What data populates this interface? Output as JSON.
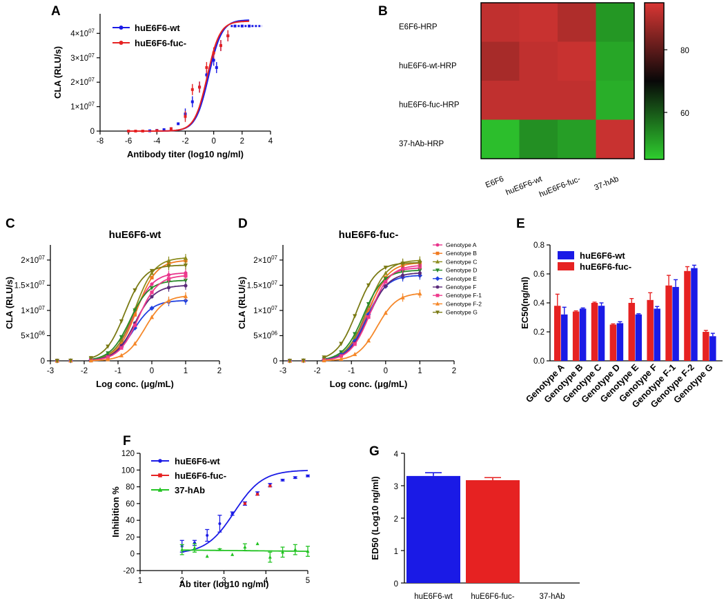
{
  "colors": {
    "wt": "#1a1ae6",
    "fuc": "#e62222",
    "hab": "#22c322",
    "black": "#000000",
    "genotype": [
      "#e8338c",
      "#f07a20",
      "#8c8c1e",
      "#2a8a2a",
      "#2040e0",
      "#5a2a7a",
      "#ee3a8c",
      "#f5882a",
      "#7a7a14"
    ]
  },
  "charts": {
    "A": {
      "label": "A",
      "type": "line",
      "xlabel": "Antibody titer  (log10 ng/ml)",
      "ylabel": "CLA (RLU/s)",
      "xlim": [
        -8,
        4
      ],
      "ylim": [
        0,
        48000000.0
      ],
      "xticks": [
        -8,
        -6,
        -4,
        -2,
        0,
        2,
        4
      ],
      "xtick_labels": [
        "-8",
        "-6",
        "-4",
        "-2",
        "0",
        "2",
        "4"
      ],
      "yticks": [
        0,
        10000000.0,
        20000000.0,
        30000000.0,
        40000000.0
      ],
      "ytick_labels": [
        {
          "m": "0",
          "e": ""
        },
        {
          "m": "1×10",
          "e": "07"
        },
        {
          "m": "2×10",
          "e": "07"
        },
        {
          "m": "3×10",
          "e": "07"
        },
        {
          "m": "4×10",
          "e": "07"
        }
      ],
      "legend": [
        "huE6F6-wt",
        "huE6F6-fuc-"
      ],
      "series": [
        {
          "name": "huE6F6-wt",
          "color": "#1a1ae6",
          "curve": {
            "bottom": 0,
            "top": 45500000.0,
            "ec50": -0.35,
            "hill": 0.95
          },
          "points": [
            [
              -6,
              0
            ],
            [
              -5.5,
              0
            ],
            [
              -5,
              0
            ],
            [
              -4.5,
              100000.0
            ],
            [
              -4,
              300000.0
            ],
            [
              -3.5,
              600000.0
            ],
            [
              -3,
              1000000.0
            ],
            [
              -2.5,
              3000000.0
            ],
            [
              -2,
              7000000.0
            ],
            [
              -1.5,
              12000000.0
            ],
            [
              -1,
              18000000.0
            ],
            [
              -0.5,
              23000000.0
            ],
            [
              0,
              29000000.0
            ],
            [
              0.2,
              26000000.0
            ],
            [
              0.5,
              35000000.0
            ],
            [
              1,
              39000000.0
            ],
            [
              1.5,
              43000000.0
            ],
            [
              2,
              43000000.0
            ],
            [
              2.5,
              43000000.0
            ]
          ]
        },
        {
          "name": "huE6F6-fuc-",
          "color": "#e62222",
          "curve": {
            "bottom": 0,
            "top": 45000000.0,
            "ec50": -0.45,
            "hill": 0.98
          },
          "points": [
            [
              -6,
              0
            ],
            [
              -5.5,
              0
            ],
            [
              -5,
              0
            ],
            [
              -4,
              200000.0
            ],
            [
              -3,
              1000000.0
            ],
            [
              -2,
              6000000.0
            ],
            [
              -1.5,
              17000000.0
            ],
            [
              -1,
              18000000.0
            ],
            [
              -0.5,
              26000000.0
            ],
            [
              0,
              32000000.0
            ],
            [
              0.5,
              35000000.0
            ],
            [
              1,
              39000000.0
            ]
          ]
        }
      ]
    },
    "B": {
      "label": "B",
      "type": "heatmap",
      "rows": [
        "E6F6-HRP",
        "huE6F6-wt-HRP",
        "huE6F6-fuc-HRP",
        "37-hAb-HRP"
      ],
      "cols": [
        "E6F6",
        "huE6F6-wt",
        "huE6F6-fuc-",
        "37-hAb"
      ],
      "values": [
        [
          92,
          93,
          90,
          52
        ],
        [
          89,
          92,
          93,
          50
        ],
        [
          92,
          92,
          92,
          49
        ],
        [
          47,
          53,
          51,
          93
        ]
      ],
      "range": [
        45,
        95
      ],
      "colorbar_ticks": [
        60,
        80
      ]
    },
    "C": {
      "label": "C",
      "type": "line",
      "title": "huE6F6-wt",
      "xlabel": "Log conc. (μg/mL)",
      "ylabel": "CLA (RLU/s)",
      "xlim": [
        -3,
        2
      ],
      "ylim": [
        0,
        23000000.0
      ],
      "xticks": [
        -3,
        -2,
        -1,
        0,
        1,
        2
      ],
      "xtick_labels": [
        "-3",
        "-2",
        "-1",
        "0",
        "1",
        "2"
      ],
      "yticks": [
        0,
        5000000.0,
        10000000.0,
        15000000.0,
        20000000.0
      ],
      "ytick_labels": [
        {
          "m": "0",
          "e": ""
        },
        {
          "m": "5×10",
          "e": "06"
        },
        {
          "m": "1×10",
          "e": "07"
        },
        {
          "m": "1.5×10",
          "e": "07"
        },
        {
          "m": "2×10",
          "e": "07"
        }
      ],
      "series": [
        {
          "name": "Genotype A",
          "top": 17500000.0,
          "ec50": -0.55
        },
        {
          "name": "Genotype B",
          "top": 20000000.0,
          "ec50": -0.45
        },
        {
          "name": "Genotype C",
          "top": 20500000.0,
          "ec50": -0.5
        },
        {
          "name": "Genotype D",
          "top": 16000000.0,
          "ec50": -0.65
        },
        {
          "name": "Genotype E",
          "top": 12000000.0,
          "ec50": -0.55
        },
        {
          "name": "Genotype F",
          "top": 15000000.0,
          "ec50": -0.5
        },
        {
          "name": "Genotype F-1",
          "top": 17000000.0,
          "ec50": -0.4
        },
        {
          "name": "Genotype F-2",
          "top": 13000000.0,
          "ec50": -0.2
        },
        {
          "name": "Genotype G",
          "top": 19000000.0,
          "ec50": -0.8
        }
      ]
    },
    "D": {
      "label": "D",
      "type": "line",
      "title": "huE6F6-fuc-",
      "xlabel": "Log conc. (μg/mL)",
      "ylabel": "CLA (RLU/s)",
      "xlim": [
        -3,
        2
      ],
      "ylim": [
        0,
        23000000.0
      ],
      "xticks": [
        -3,
        -2,
        -1,
        0,
        1,
        2
      ],
      "xtick_labels": [
        "-3",
        "-2",
        "-1",
        "0",
        "1",
        "2"
      ],
      "yticks": [
        0,
        5000000.0,
        10000000.0,
        15000000.0,
        20000000.0
      ],
      "ytick_labels": [
        {
          "m": "0",
          "e": ""
        },
        {
          "m": "5×10",
          "e": "06"
        },
        {
          "m": "1×10",
          "e": "07"
        },
        {
          "m": "1.5×10",
          "e": "07"
        },
        {
          "m": "2×10",
          "e": "07"
        }
      ],
      "legend": [
        "Genotype A",
        "Genotype B",
        "Genotype C",
        "Genotype D",
        "Genotype E",
        "Genotype F",
        "Genotype F-1",
        "Genotype F-2",
        "Genotype G"
      ],
      "series": [
        {
          "name": "Genotype A",
          "top": 18500000.0,
          "ec50": -0.55
        },
        {
          "name": "Genotype B",
          "top": 19500000.0,
          "ec50": -0.5
        },
        {
          "name": "Genotype C",
          "top": 20000000.0,
          "ec50": -0.55
        },
        {
          "name": "Genotype D",
          "top": 18000000.0,
          "ec50": -0.65
        },
        {
          "name": "Genotype E",
          "top": 17000000.0,
          "ec50": -0.55
        },
        {
          "name": "Genotype F",
          "top": 17500000.0,
          "ec50": -0.5
        },
        {
          "name": "Genotype F-1",
          "top": 19000000.0,
          "ec50": -0.45
        },
        {
          "name": "Genotype F-2",
          "top": 13500000.0,
          "ec50": -0.25
        },
        {
          "name": "Genotype G",
          "top": 19500000.0,
          "ec50": -0.85
        }
      ]
    },
    "E": {
      "label": "E",
      "type": "bar",
      "ylabel": "EC50(ng/ml)",
      "ylim": [
        0,
        0.8
      ],
      "yticks": [
        0,
        0.2,
        0.4,
        0.6,
        0.8
      ],
      "ytick_labels": [
        "0.0",
        "0.2",
        "0.4",
        "0.6",
        "0.8"
      ],
      "legend": [
        "huE6F6-wt",
        "huE6F6-fuc-"
      ],
      "categories": [
        "Genotype A",
        "Genotype B",
        "Genotype C",
        "Genotype D",
        "Genotype E",
        "Genotype F",
        "Genotype F-1",
        "Genotype F-2",
        "Genotype G"
      ],
      "series": [
        {
          "name": "huE6F6-fuc-",
          "color": "#e62222",
          "values": [
            0.38,
            0.34,
            0.4,
            0.25,
            0.4,
            0.42,
            0.52,
            0.62,
            0.2
          ],
          "errors": [
            0.08,
            0.005,
            0.005,
            0.005,
            0.03,
            0.05,
            0.07,
            0.03,
            0.01
          ]
        },
        {
          "name": "huE6F6-wt",
          "color": "#1a1ae6",
          "values": [
            0.32,
            0.36,
            0.38,
            0.26,
            0.32,
            0.36,
            0.51,
            0.64,
            0.17
          ],
          "errors": [
            0.05,
            0.005,
            0.02,
            0.01,
            0.005,
            0.015,
            0.05,
            0.02,
            0.02
          ]
        }
      ]
    },
    "F": {
      "label": "F",
      "type": "line",
      "xlabel": "Ab titer (log10 ng/ml)",
      "ylabel": "Inhibition %",
      "xlim": [
        1,
        5
      ],
      "ylim": [
        -20,
        120
      ],
      "xticks": [
        1,
        2,
        3,
        4,
        5
      ],
      "xtick_labels": [
        "1",
        "2",
        "3",
        "4",
        "5"
      ],
      "yticks": [
        -20,
        0,
        20,
        40,
        60,
        80,
        100,
        120
      ],
      "ytick_labels": [
        "-20",
        "0",
        "20",
        "40",
        "60",
        "80",
        "100",
        "120"
      ],
      "legend": [
        "huE6F6-wt",
        "huE6F6-fuc-",
        "37-hAb"
      ],
      "series": [
        {
          "name": "huE6F6-wt",
          "color": "#1a1ae6",
          "curve": {
            "type": "sig",
            "bottom": 0,
            "top": 100,
            "ec50": 3.25,
            "hill": 1.3
          },
          "points": [
            [
              2,
              9
            ],
            [
              2.3,
              13
            ],
            [
              2.6,
              22
            ],
            [
              2.9,
              36
            ],
            [
              3.2,
              48
            ],
            [
              3.5,
              60
            ],
            [
              3.8,
              72
            ],
            [
              4.1,
              82
            ],
            [
              4.4,
              88
            ],
            [
              4.7,
              91
            ],
            [
              5,
              93
            ]
          ],
          "errors": [
            7,
            3,
            7,
            10,
            2,
            2,
            2,
            2,
            1,
            1,
            1
          ]
        },
        {
          "name": "huE6F6-fuc-",
          "color": "#e62222",
          "curve": null,
          "points": [
            [
              3.5,
              60
            ],
            [
              3.8,
              71
            ],
            [
              4.1,
              81
            ]
          ],
          "errors": [
            0,
            0,
            0
          ]
        },
        {
          "name": "37-hAb",
          "color": "#22c322",
          "curve": {
            "type": "lin",
            "y0": 4.5,
            "y1": 3
          },
          "points": [
            [
              2,
              5
            ],
            [
              2.3,
              7
            ],
            [
              2.6,
              -3
            ],
            [
              2.9,
              5
            ],
            [
              3.2,
              -1
            ],
            [
              3.5,
              8
            ],
            [
              3.8,
              12
            ],
            [
              4.1,
              -4
            ],
            [
              4.4,
              2
            ],
            [
              4.7,
              5
            ],
            [
              5,
              3
            ]
          ],
          "errors": [
            6,
            5,
            0,
            1,
            0,
            4,
            0,
            6,
            6,
            6,
            6
          ]
        }
      ]
    },
    "G": {
      "label": "G",
      "type": "bar",
      "ylabel": "ED50 (Log10 ng/ml)",
      "ylim": [
        0,
        4
      ],
      "yticks": [
        0,
        1,
        2,
        3,
        4
      ],
      "ytick_labels": [
        "0",
        "1",
        "2",
        "3",
        "4"
      ],
      "categories": [
        "huE6F6-wt",
        "huE6F6-fuc-",
        "37-hAb"
      ],
      "values": [
        3.3,
        3.17,
        0
      ],
      "errors": [
        0.1,
        0.08,
        0
      ],
      "colors": [
        "#1a1ae6",
        "#e62222",
        "#22c322"
      ]
    }
  }
}
